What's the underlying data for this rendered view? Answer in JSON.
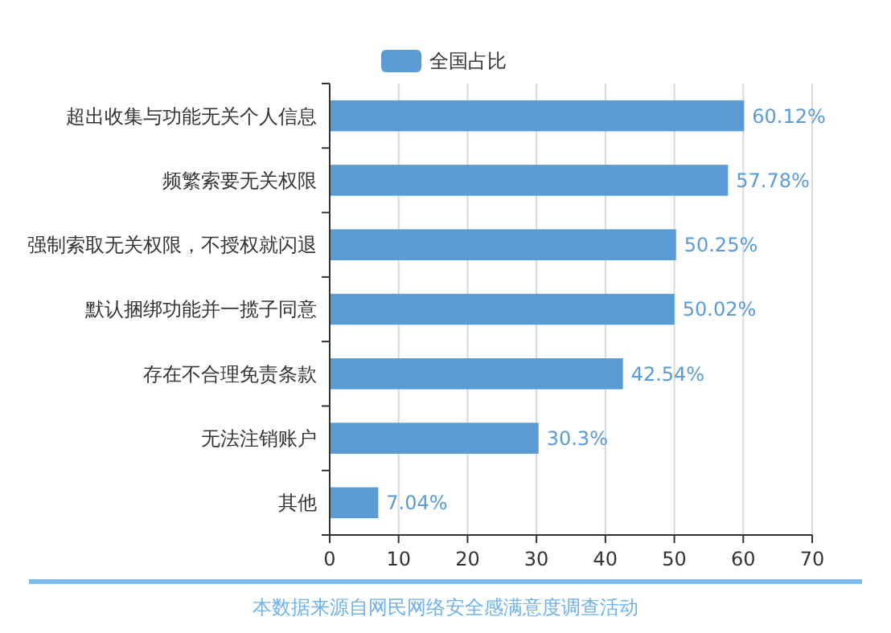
{
  "chart_data": {
    "type": "bar",
    "orientation": "horizontal",
    "categories": [
      "超出收集与功能无关个人信息",
      "频繁索要无关权限",
      "强制索取无关权限，不授权就闪退",
      "默认捆绑功能并一揽子同意",
      "存在不合理免责条款",
      "无法注销账户",
      "其他"
    ],
    "series": [
      {
        "name": "全国占比",
        "color": "#5b9bd5",
        "values": [
          60.12,
          57.78,
          50.25,
          50.02,
          42.54,
          30.3,
          7.04
        ],
        "value_labels": [
          "60.12%",
          "57.78%",
          "50.25%",
          "50.02%",
          "42.54%",
          "30.3%",
          "7.04%"
        ]
      }
    ],
    "xlim": [
      0,
      70
    ],
    "xticks": [
      0,
      10,
      20,
      30,
      40,
      50,
      60,
      70
    ],
    "grid": "x",
    "legend": "top",
    "annotations": [
      "本数据来源自网民网络安全感满意度调查活动"
    ]
  }
}
